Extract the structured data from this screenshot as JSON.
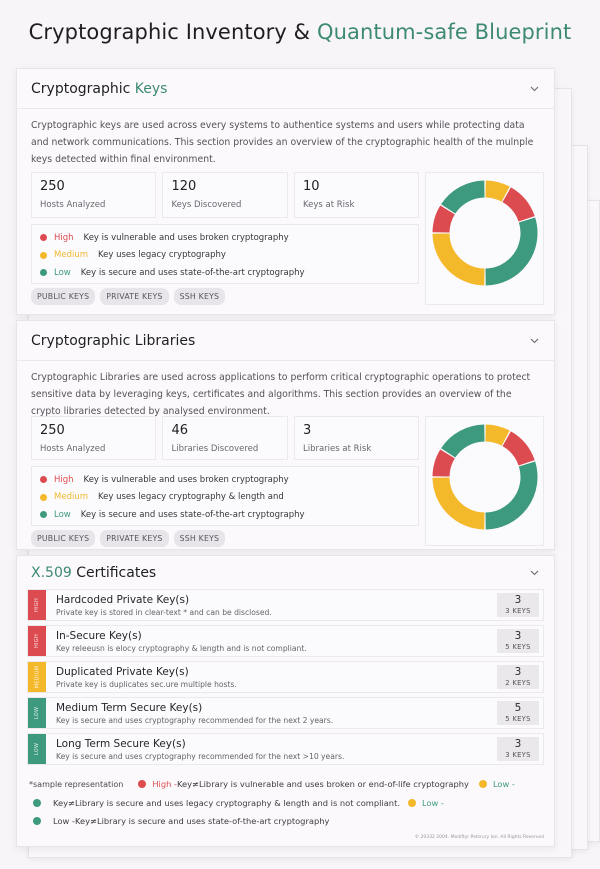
{
  "page": {
    "title_main": "Cryptographic Inventory & ",
    "title_accent": "Quantum-safe Blueprint"
  },
  "colors": {
    "high": "#dc4b50",
    "medium": "#f4b82b",
    "low": "#3d9a7e",
    "accent": "#3d8a72"
  },
  "keys": {
    "title_main": "Cryptographic ",
    "title_accent": "Keys",
    "description": "Cryptographic keys are used across every systems to authentice systems and users while protecting data and network communications. This section provides an overview of the cryptographic health of the mulnple keys detected within final environment.",
    "stats": [
      {
        "value": "250",
        "label": "Hosts Analyzed"
      },
      {
        "value": "120",
        "label": "Keys Discovered"
      },
      {
        "value": "10",
        "label": "Keys at Risk"
      }
    ],
    "legend": [
      {
        "level": "High",
        "text": "Key is vulnerable and uses broken cryptography"
      },
      {
        "level": "Medium",
        "text": "Key uses legacy cryptography"
      },
      {
        "level": "Low",
        "text": "Key is secure and uses state-of-the-art cryptography"
      }
    ],
    "tags": [
      "PUBLIC KEYS",
      "PRIVATE KEYS",
      "SSH KEYS"
    ]
  },
  "libraries": {
    "title": "Cryptographic Libraries",
    "description": "Cryptographic Libraries are used across applications to perform critical cryptographic operations to protect sensitive data by leveraging keys, certificates and algorithms. This section provides an overview of the crypto libraries detected by analysed environment.",
    "stats": [
      {
        "value": "250",
        "label": "Hosts Analyzed"
      },
      {
        "value": "46",
        "label": "Libraries Discovered"
      },
      {
        "value": "3",
        "label": "Libraries at Risk"
      }
    ],
    "legend": [
      {
        "level": "High",
        "text": "Key is vulnerable and uses broken cryptography"
      },
      {
        "level": "Medium",
        "text": "Key uses legacy cryptography & length and"
      },
      {
        "level": "Low",
        "text": "Key is secure and uses state-of-the-art cryptography"
      }
    ],
    "tags": [
      "PUBLIC KEYS",
      "PRIVATE KEYS",
      "SSH KEYS"
    ]
  },
  "chart_data": [
    {
      "type": "pie",
      "title": "Cryptographic Keys health",
      "donut": true,
      "categories": [
        "Medium",
        "High",
        "Low",
        "Medium",
        "High",
        "Low"
      ],
      "values": [
        8,
        12,
        30,
        25,
        9,
        16
      ],
      "colors": [
        "#f4b82b",
        "#dc4b50",
        "#3d9a7e",
        "#f4b82b",
        "#dc4b50",
        "#3d9a7e"
      ]
    },
    {
      "type": "pie",
      "title": "Cryptographic Libraries health",
      "donut": true,
      "categories": [
        "Medium",
        "High",
        "Low",
        "Medium",
        "High",
        "Low"
      ],
      "values": [
        8,
        12,
        30,
        25,
        9,
        16
      ],
      "colors": [
        "#f4b82b",
        "#dc4b50",
        "#3d9a7e",
        "#f4b82b",
        "#dc4b50",
        "#3d9a7e"
      ]
    }
  ],
  "certificates": {
    "title_accent": "X.509",
    "title_main": " Certificates",
    "rows": [
      {
        "tab": "HIGH",
        "severity": "high",
        "title": "Hardcoded Private Key(s)",
        "desc": "Private key is stored in clear-text * and can be disclosed.",
        "count": "3",
        "keys": "3 KEYS"
      },
      {
        "tab": "HIGH",
        "severity": "high",
        "title": "In-Secure Key(s)",
        "desc": "Key releeusn is elocy cryptography & length and is not compliant.",
        "count": "3",
        "keys": "5 KEYS"
      },
      {
        "tab": "MEDIUM",
        "severity": "medium",
        "title": "Duplicated Private Key(s)",
        "desc": "Private key is duplicates sec.ure multiple hosts.",
        "count": "3",
        "keys": "2 KEYS"
      },
      {
        "tab": "LOW",
        "severity": "low",
        "title": "Medium Term Secure Key(s)",
        "desc": "Key is secure and uses cryptography recommended for the next 2 years.",
        "count": "5",
        "keys": "5 KEYS"
      },
      {
        "tab": "LOW",
        "severity": "low",
        "title": "Long Term Secure Key(s)",
        "desc": "Key is secure and uses cryptography recommended for the next >10 years.",
        "count": "3",
        "keys": "3 KEYS"
      }
    ],
    "footnote": {
      "sample": "*sample representation",
      "high_label": "High -",
      "high_text": " Key≠Library is vulnerable and uses broken or end-of-life cryptography",
      "low1_label": "Low -",
      "mid_text": "Key≠Library is secure and uses legacy cryptography & length and is not compliant.",
      "low2_label": "Low -",
      "low3_label": "Low -",
      "low3_text": " Key≠Library is secure and uses state-of-the-art cryptography"
    },
    "copyright": "© 20332 2004. Mediftyr Petsrury Ion. All Rights Reserved"
  }
}
